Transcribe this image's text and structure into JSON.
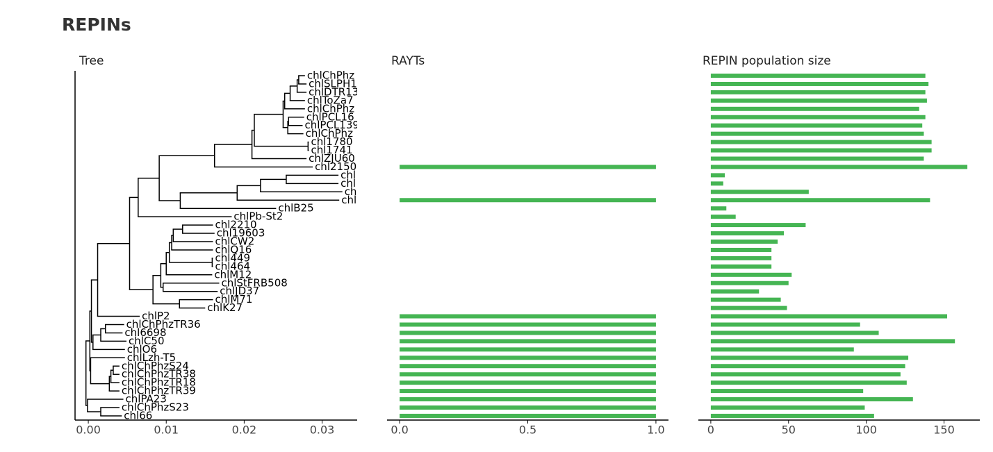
{
  "title": "REPINs",
  "chart_data": [
    {
      "type": "tree",
      "title": "Tree",
      "xlim": [
        -0.0017,
        0.0345
      ],
      "xticks": [
        {
          "value": 0,
          "label": "0.00"
        },
        {
          "value": 0.01,
          "label": "0.01"
        },
        {
          "value": 0.02,
          "label": "0.02"
        },
        {
          "value": 0.03,
          "label": "0.03"
        }
      ],
      "tree": {
        "x": -0.0003,
        "children": [
          {
            "x": 0.0002,
            "children": [
              {
                "x": 0.0004,
                "children": [
                  {
                    "x": 0.0012,
                    "children": [
                      {
                        "x": 0.0053,
                        "children": [
                          {
                            "x": 0.0064,
                            "children": [
                              {
                                "x": 0.0091,
                                "children": [
                                  {
                                    "x": 0.0162,
                                    "children": [
                                      {
                                        "x": 0.021,
                                        "children": [
                                          {
                                            "x": 0.0213,
                                            "children": [
                                              {
                                                "x": 0.025,
                                                "children": [
                                                  {
                                                    "x": 0.0252,
                                                    "children": [
                                                      {
                                                        "x": 0.0259,
                                                        "children": [
                                                          {
                                                            "x": 0.0268,
                                                            "children": [
                                                              {
                                                                "x": 0.027,
                                                                "children": [
                                                                  {
                                                                    "label": "chlChPhz",
                                                                    "x": 0.0278
                                                                  },
                                                                  {
                                                                    "label": "chlSLPH1",
                                                                    "x": 0.028
                                                                  }
                                                                ]
                                                              },
                                                              {
                                                                "label": "chlDTR13",
                                                                "x": 0.028
                                                              }
                                                            ]
                                                          },
                                                          {
                                                            "label": "chlToZa7",
                                                            "x": 0.0278
                                                          }
                                                        ]
                                                      },
                                                      {
                                                        "label": "chlChPhz",
                                                        "x": 0.0278
                                                      }
                                                    ]
                                                  },
                                                  {
                                                    "x": 0.0256,
                                                    "children": [
                                                      {
                                                        "x": 0.0257,
                                                        "children": [
                                                          {
                                                            "label": "chlPCL16",
                                                            "x": 0.0277
                                                          },
                                                          {
                                                            "label": "chlPCL139",
                                                            "x": 0.0275
                                                          }
                                                        ]
                                                      },
                                                      {
                                                        "label": "chlChPhz",
                                                        "x": 0.0276
                                                      }
                                                    ]
                                                  }
                                                ]
                                              },
                                              {
                                                "x": 0.0282,
                                                "children": [
                                                  {
                                                    "label": "chl1780",
                                                    "x": 0.0283
                                                  },
                                                  {
                                                    "label": "chl1741",
                                                    "x": 0.0283
                                                  }
                                                ]
                                              }
                                            ]
                                          },
                                          {
                                            "label": "chlZJU60",
                                            "x": 0.028
                                          }
                                        ]
                                      },
                                      {
                                        "label": "chl2150",
                                        "x": 0.0288
                                      }
                                    ]
                                  },
                                  {
                                    "x": 0.0118,
                                    "children": [
                                      {
                                        "x": 0.0191,
                                        "children": [
                                          {
                                            "x": 0.0221,
                                            "children": [
                                              {
                                                "x": 0.0254,
                                                "children": [
                                                  {
                                                    "label": "chl",
                                                    "x": 0.0321
                                                  },
                                                  {
                                                    "label": "chl",
                                                    "x": 0.0321
                                                  }
                                                ]
                                              },
                                              {
                                                "label": "ch",
                                                "x": 0.0326
                                              }
                                            ]
                                          },
                                          {
                                            "label": "chl",
                                            "x": 0.0322
                                          }
                                        ]
                                      },
                                      {
                                        "label": "chlB25",
                                        "x": 0.0241
                                      }
                                    ]
                                  }
                                ]
                              },
                              {
                                "label": "chlPb-St2",
                                "x": 0.0184
                              }
                            ]
                          },
                          {
                            "x": 0.0083,
                            "children": [
                              {
                                "x": 0.0093,
                                "children": [
                                  {
                                    "x": 0.01,
                                    "children": [
                                      {
                                        "x": 0.0104,
                                        "children": [
                                          {
                                            "x": 0.0107,
                                            "children": [
                                              {
                                                "x": 0.0109,
                                                "children": [
                                                  {
                                                    "x": 0.0121,
                                                    "children": [
                                                      {
                                                        "label": "chl2210",
                                                        "x": 0.016
                                                      },
                                                      {
                                                        "label": "chl19603",
                                                        "x": 0.0162
                                                      }
                                                    ]
                                                  },
                                                  {
                                                    "label": "chlCW2",
                                                    "x": 0.016
                                                  }
                                                ]
                                              },
                                              {
                                                "label": "chlQ16",
                                                "x": 0.016
                                              }
                                            ]
                                          },
                                          {
                                            "x": 0.0159,
                                            "children": [
                                              {
                                                "label": "chl449",
                                                "x": 0.016
                                              },
                                              {
                                                "label": "chl464",
                                                "x": 0.016
                                              }
                                            ]
                                          }
                                        ]
                                      },
                                      {
                                        "label": "chlM12",
                                        "x": 0.0159
                                      }
                                    ]
                                  },
                                  {
                                    "x": 0.0096,
                                    "children": [
                                      {
                                        "label": "chlStFRB508",
                                        "x": 0.0168
                                      },
                                      {
                                        "label": "chlJD37",
                                        "x": 0.0166
                                      }
                                    ]
                                  }
                                ]
                              },
                              {
                                "x": 0.0117,
                                "children": [
                                  {
                                    "label": "chlM71",
                                    "x": 0.016
                                  },
                                  {
                                    "label": "chlK27",
                                    "x": 0.015
                                  }
                                ]
                              }
                            ]
                          }
                        ]
                      },
                      {
                        "label": "chlP2",
                        "x": 0.0066
                      }
                    ]
                  },
                  {
                    "x": 0.0006,
                    "children": [
                      {
                        "x": 0.0016,
                        "children": [
                          {
                            "x": 0.0022,
                            "children": [
                              {
                                "label": "chlChPhzTR36",
                                "x": 0.0046
                              },
                              {
                                "label": "chl6698",
                                "x": 0.0044
                              }
                            ]
                          },
                          {
                            "label": "chlC50",
                            "x": 0.0049
                          }
                        ]
                      },
                      {
                        "label": "chlO6",
                        "x": 0.0047
                      }
                    ]
                  }
                ]
              },
              {
                "x": 0.0003,
                "children": [
                  {
                    "label": "chlLzh-T5",
                    "x": 0.0047
                  },
                  {
                    "x": 0.0027,
                    "children": [
                      {
                        "x": 0.0029,
                        "children": [
                          {
                            "x": 0.0032,
                            "children": [
                              {
                                "label": "chlChPhzS24",
                                "x": 0.004
                              },
                              {
                                "label": "chlChPhzTR38",
                                "x": 0.004
                              }
                            ]
                          },
                          {
                            "label": "chlChPhzTR18",
                            "x": 0.004
                          }
                        ]
                      },
                      {
                        "label": "chlChPhzTR39",
                        "x": 0.004
                      }
                    ]
                  }
                ]
              }
            ]
          },
          {
            "x": -0.0001,
            "children": [
              {
                "label": "chlPA23",
                "x": 0.0045
              },
              {
                "x": 0.0016,
                "children": [
                  {
                    "label": "chlChPhzS23",
                    "x": 0.004
                  },
                  {
                    "label": "chl66",
                    "x": 0.0043
                  }
                ]
              }
            ]
          }
        ]
      }
    },
    {
      "type": "bar",
      "title": "RAYTs",
      "color": "#45b553",
      "xlim": [
        -0.049,
        1.049
      ],
      "xticks": [
        {
          "value": 0,
          "label": "0.0"
        },
        {
          "value": 0.5,
          "label": "0.5"
        },
        {
          "value": 1,
          "label": "1.0"
        }
      ],
      "values": [
        0,
        0,
        0,
        0,
        0,
        0,
        0,
        0,
        0,
        0,
        0,
        1,
        0,
        0,
        0,
        1,
        0,
        0,
        0,
        0,
        0,
        0,
        0,
        0,
        0,
        0,
        0,
        0,
        0,
        1,
        1,
        1,
        1,
        1,
        1,
        1,
        1,
        1,
        1,
        1,
        1,
        1
      ]
    },
    {
      "type": "bar",
      "title": "REPIN population size",
      "color": "#45b553",
      "xlim": [
        -8,
        173
      ],
      "xticks": [
        0,
        50,
        100,
        150
      ],
      "values": [
        138,
        140,
        138,
        139,
        134,
        138,
        136,
        137,
        142,
        142,
        137,
        165,
        9,
        8,
        63,
        141,
        10,
        16,
        61,
        47,
        43,
        39,
        39,
        39,
        52,
        50,
        31,
        45,
        49,
        152,
        96,
        108,
        157,
        92,
        127,
        125,
        122,
        126,
        98,
        130,
        99,
        105
      ]
    }
  ]
}
